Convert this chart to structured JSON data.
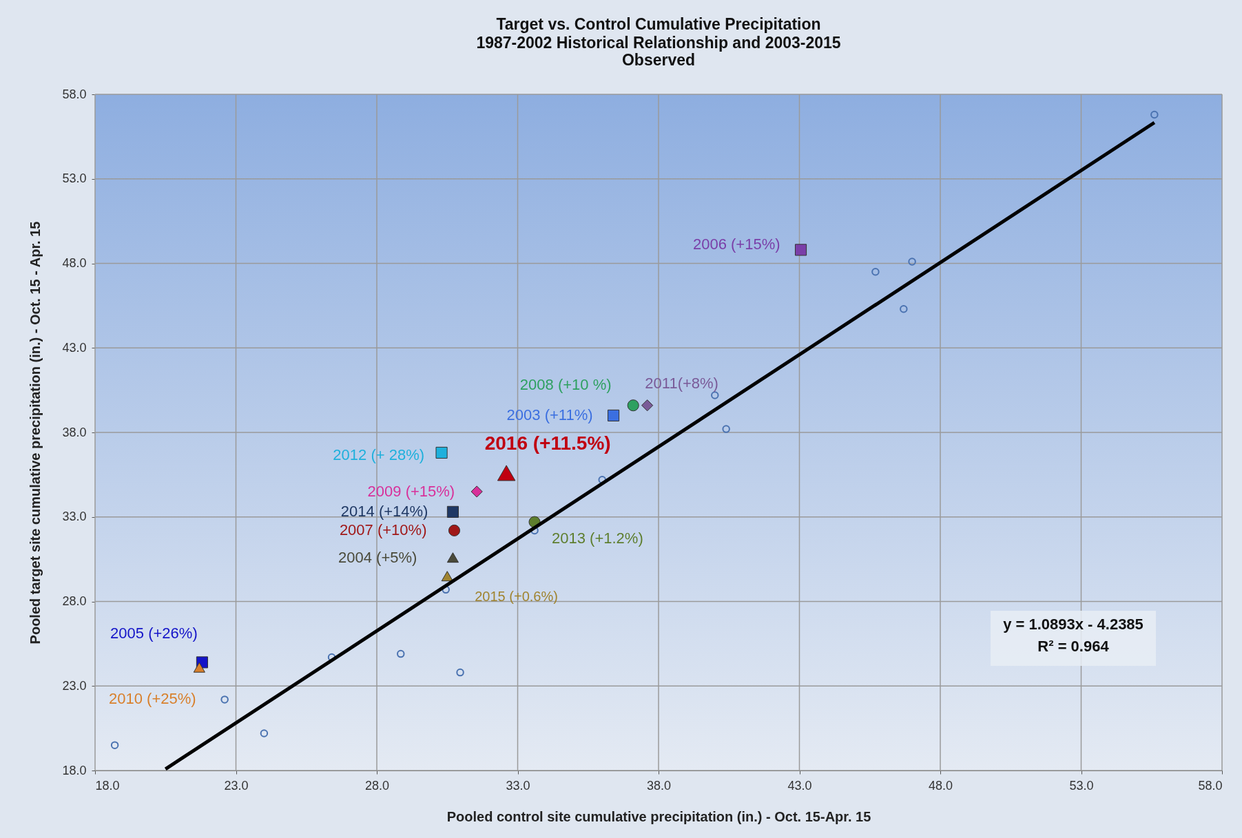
{
  "chart_data": {
    "type": "scatter",
    "title": "Target vs. Control Cumulative Precipitation",
    "subtitle": "1987-2002 Historical Relationship and 2003-2015 Observed",
    "xlabel": "Pooled control site cumulative precipitation (in.) - Oct. 15-Apr. 15",
    "ylabel": "Pooled target site cumulative precipitation (in.) - Oct. 15 - Apr. 15",
    "xlim": [
      18,
      58
    ],
    "ylim": [
      18,
      58
    ],
    "xticks": [
      {
        "value": 18,
        "label": "18.0"
      },
      {
        "value": 23,
        "label": "23.0"
      },
      {
        "value": 28,
        "label": "28.0"
      },
      {
        "value": 33,
        "label": "33.0"
      },
      {
        "value": 38,
        "label": "38.0"
      },
      {
        "value": 43,
        "label": "43.0"
      },
      {
        "value": 48,
        "label": "48.0"
      },
      {
        "value": 53,
        "label": "53.0"
      },
      {
        "value": 58,
        "label": "58.0"
      }
    ],
    "yticks": [
      {
        "value": 18,
        "label": "18.0"
      },
      {
        "value": 23,
        "label": "23.0"
      },
      {
        "value": 28,
        "label": "28.0"
      },
      {
        "value": 33,
        "label": "33.0"
      },
      {
        "value": 38,
        "label": "38.0"
      },
      {
        "value": 43,
        "label": "43.0"
      },
      {
        "value": 48,
        "label": "48.0"
      },
      {
        "value": 53,
        "label": "53.0"
      },
      {
        "value": 58,
        "label": "58.0"
      }
    ],
    "grid": true,
    "annotations": [
      "y = 1.0893x - 4.2385",
      "R² = 0.964"
    ],
    "series": [
      {
        "marker": "circle",
        "color": "#4a72b0",
        "x": [
          55.6,
          45.7,
          47.0,
          46.7,
          40.0,
          40.4,
          36.0,
          33.6,
          30.45,
          26.4,
          28.85,
          30.96,
          22.6,
          24.0,
          18.7
        ],
        "values": [
          56.8,
          47.5,
          48.1,
          45.3,
          40.2,
          38.2,
          35.2,
          32.2,
          28.7,
          24.7,
          24.9,
          23.8,
          22.2,
          20.2,
          19.5
        ]
      },
      {
        "type": "scatter",
        "name": "2003 (+11%)",
        "marker": "square",
        "color": "#3b6fe0",
        "x": [
          36.4
        ],
        "values": [
          39.0
        ]
      },
      {
        "type": "scatter",
        "name": "2004 (+5%)",
        "marker": "triangle",
        "color": "#4a4a3a",
        "x": [
          30.7
        ],
        "values": [
          30.6
        ]
      },
      {
        "type": "scatter",
        "name": "2005 (+26%)",
        "marker": "square",
        "color": "#1414c8",
        "x": [
          21.8
        ],
        "values": [
          24.4
        ]
      },
      {
        "type": "scatter",
        "name": "2006 (+15%)",
        "marker": "square",
        "color": "#7a3fa8",
        "x": [
          43.05
        ],
        "values": [
          48.8
        ]
      },
      {
        "type": "scatter",
        "name": "2007 (+10%)",
        "marker": "circle",
        "color": "#a01818",
        "x": [
          30.75
        ],
        "values": [
          32.2
        ]
      },
      {
        "type": "scatter",
        "name": "2008 (+10 %)",
        "marker": "circle",
        "color": "#2ea060",
        "x": [
          37.1
        ],
        "values": [
          39.6
        ]
      },
      {
        "type": "scatter",
        "name": "2009 (+15%)",
        "marker": "diamond",
        "color": "#d8309a",
        "x": [
          31.55
        ],
        "values": [
          34.5
        ]
      },
      {
        "type": "scatter",
        "name": "2010 (+25%)",
        "marker": "triangle",
        "color": "#d8802c",
        "x": [
          21.7
        ],
        "values": [
          24.1
        ]
      },
      {
        "type": "scatter",
        "name": "2011(+8%)",
        "marker": "diamond",
        "color": "#7a5a98",
        "x": [
          37.6
        ],
        "values": [
          39.6
        ]
      },
      {
        "type": "scatter",
        "name": "2012 (+ 28%)",
        "marker": "square",
        "color": "#1fb0dc",
        "x": [
          30.3
        ],
        "values": [
          36.8
        ]
      },
      {
        "type": "scatter",
        "name": "2013 (+1.2%)",
        "marker": "circle",
        "color": "#5e7e2e",
        "x": [
          33.6
        ],
        "values": [
          32.7
        ]
      },
      {
        "type": "scatter",
        "name": "2014 (+14%)",
        "marker": "square",
        "color": "#1f3864",
        "x": [
          30.7
        ],
        "values": [
          33.3
        ]
      },
      {
        "type": "scatter",
        "name": "2015 (+0.6%)",
        "marker": "triangle",
        "color": "#a08430",
        "x": [
          30.5
        ],
        "values": [
          29.5
        ]
      },
      {
        "type": "scatter",
        "name": "2016 (+11.5%)",
        "marker": "triangle",
        "color": "#c00010",
        "x": [
          32.6
        ],
        "values": [
          35.6
        ]
      },
      {
        "type": "line",
        "color": "#000000",
        "x": [
          20.5,
          55.6
        ],
        "values": [
          18.09,
          56.33
        ]
      }
    ]
  }
}
